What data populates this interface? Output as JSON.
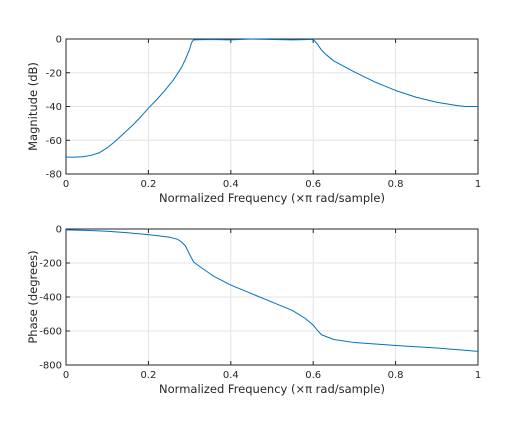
{
  "chart_data": [
    {
      "type": "line",
      "xlabel": "Normalized Frequency  (×π rad/sample)",
      "ylabel": "Magnitude (dB)",
      "xlim": [
        0,
        1
      ],
      "ylim": [
        -80,
        0
      ],
      "xticks": [
        0,
        0.2,
        0.4,
        0.6,
        0.8,
        1
      ],
      "xtick_labels": [
        "0",
        "0.2",
        "0.4",
        "0.6",
        "0.8",
        "1"
      ],
      "yticks": [
        -80,
        -60,
        -40,
        -20,
        0
      ],
      "ytick_labels": [
        "-80",
        "-60",
        "-40",
        "-20",
        "0"
      ],
      "grid": true,
      "series": [
        {
          "color": "#0072bd",
          "x": [
            0,
            0.02,
            0.04,
            0.06,
            0.08,
            0.1,
            0.12,
            0.14,
            0.16,
            0.18,
            0.2,
            0.22,
            0.24,
            0.26,
            0.28,
            0.29,
            0.3,
            0.305,
            0.31,
            0.35,
            0.4,
            0.45,
            0.5,
            0.55,
            0.58,
            0.595,
            0.6,
            0.605,
            0.61,
            0.62,
            0.63,
            0.65,
            0.7,
            0.75,
            0.8,
            0.85,
            0.9,
            0.95,
            0.97,
            1
          ],
          "y": [
            -70,
            -70,
            -69.8,
            -69,
            -67.5,
            -64.5,
            -60.5,
            -56,
            -51.5,
            -46.5,
            -41,
            -36,
            -30.5,
            -24.5,
            -17,
            -12,
            -6,
            -2,
            -0.5,
            -0.3,
            -0.5,
            0,
            -0.3,
            -0.5,
            -0.4,
            -0.2,
            -0.5,
            -1.5,
            -3,
            -6.5,
            -9,
            -13,
            -19.5,
            -25.5,
            -30.5,
            -34.5,
            -37.5,
            -39.5,
            -40,
            -40
          ]
        }
      ]
    },
    {
      "type": "line",
      "xlabel": "Normalized Frequency  (×π rad/sample)",
      "ylabel": "Phase (degrees)",
      "xlim": [
        0,
        1
      ],
      "ylim": [
        -800,
        0
      ],
      "xticks": [
        0,
        0.2,
        0.4,
        0.6,
        0.8,
        1
      ],
      "xtick_labels": [
        "0",
        "0.2",
        "0.4",
        "0.6",
        "0.8",
        "1"
      ],
      "yticks": [
        -800,
        -600,
        -400,
        -200,
        0
      ],
      "ytick_labels": [
        "-800",
        "-600",
        "-400",
        "-200",
        "0"
      ],
      "grid": true,
      "series": [
        {
          "color": "#0072bd",
          "x": [
            0,
            0.05,
            0.1,
            0.15,
            0.2,
            0.25,
            0.27,
            0.28,
            0.29,
            0.3,
            0.31,
            0.33,
            0.36,
            0.4,
            0.45,
            0.5,
            0.55,
            0.58,
            0.6,
            0.61,
            0.62,
            0.65,
            0.7,
            0.8,
            0.9,
            1
          ],
          "y": [
            -5,
            -8,
            -13,
            -22,
            -33,
            -48,
            -60,
            -75,
            -100,
            -150,
            -195,
            -230,
            -280,
            -330,
            -380,
            -430,
            -480,
            -525,
            -565,
            -595,
            -622,
            -650,
            -668,
            -685,
            -700,
            -720
          ]
        }
      ]
    }
  ]
}
